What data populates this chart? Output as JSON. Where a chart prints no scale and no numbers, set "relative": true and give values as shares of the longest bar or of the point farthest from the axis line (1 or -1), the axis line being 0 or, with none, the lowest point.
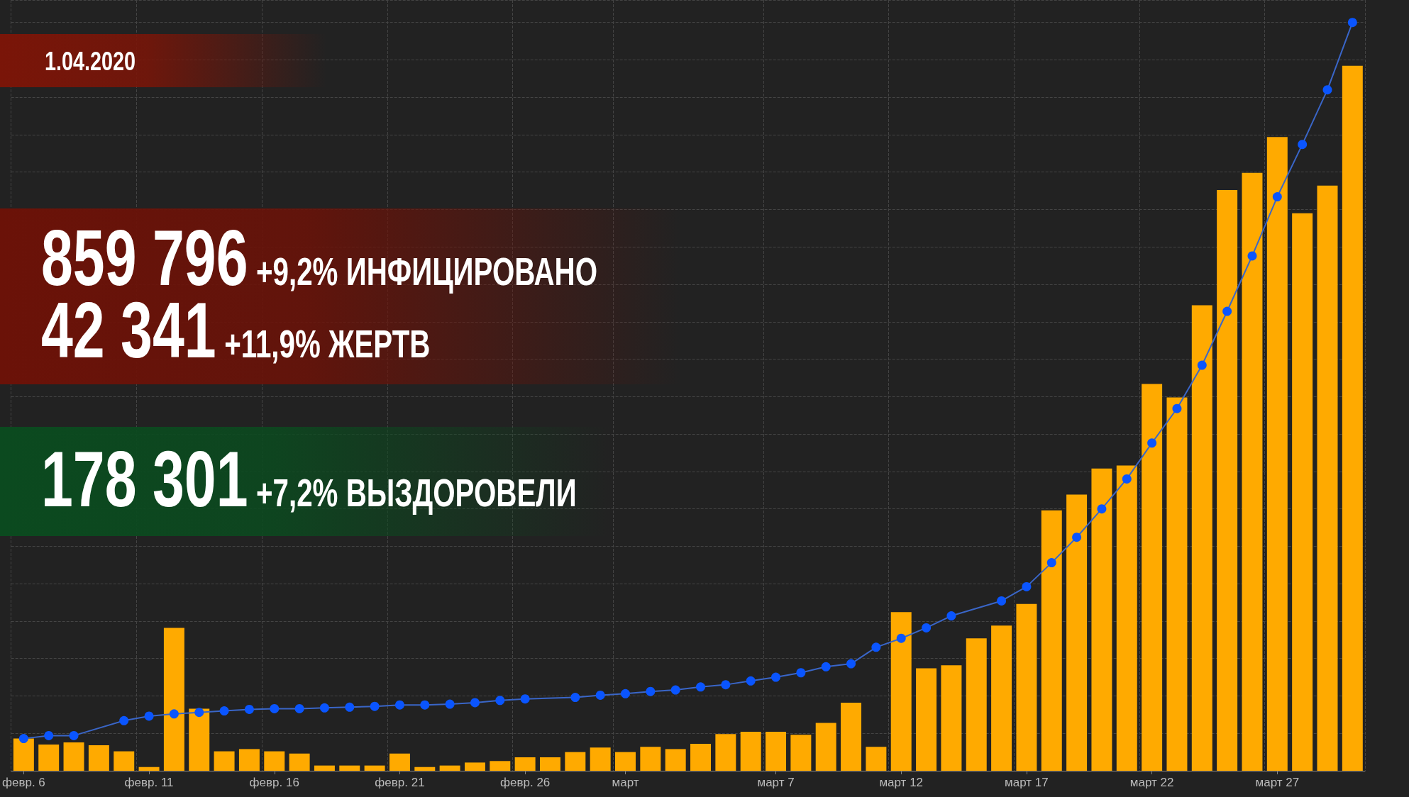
{
  "chart_data": {
    "type": "bar",
    "relative": true,
    "grid": true,
    "marker": "circle",
    "categories": [
      "февр. 6",
      null,
      null,
      null,
      null,
      "февр. 11",
      null,
      null,
      null,
      null,
      "февр. 16",
      null,
      null,
      null,
      null,
      "февр. 21",
      null,
      null,
      null,
      null,
      "февр. 26",
      null,
      null,
      null,
      "март",
      null,
      null,
      null,
      null,
      null,
      "март 7",
      null,
      null,
      null,
      null,
      "март 12",
      null,
      null,
      null,
      null,
      "март 17",
      null,
      null,
      null,
      null,
      "март 22",
      null,
      null,
      null,
      null,
      "март 27",
      null,
      null,
      null
    ],
    "series": [
      {
        "color": "#ffaa00",
        "values": [
          0.043,
          0.035,
          0.038,
          0.034,
          0.026,
          0.005,
          0.191,
          0.083,
          0.026,
          0.029,
          0.026,
          0.023,
          0.007,
          0.007,
          0.007,
          0.023,
          0.005,
          0.007,
          0.011,
          0.013,
          0.018,
          0.018,
          0.025,
          0.031,
          0.025,
          0.032,
          0.029,
          0.036,
          0.049,
          0.052,
          0.052,
          0.048,
          0.064,
          0.091,
          0.032,
          0.212,
          0.137,
          0.141,
          0.177,
          0.194,
          0.223,
          0.348,
          0.369,
          0.404,
          0.408,
          0.517,
          0.499,
          0.622,
          0.776,
          0.799,
          0.847,
          0.745,
          0.782,
          0.942
        ]
      },
      {
        "type": "line",
        "color": "#0a55ff",
        "values": [
          0.043,
          0.047,
          0.047,
          null,
          0.067,
          0.073,
          0.076,
          0.078,
          0.08,
          0.082,
          0.083,
          0.083,
          0.084,
          0.085,
          0.086,
          0.088,
          0.088,
          0.089,
          0.091,
          0.094,
          0.096,
          null,
          0.098,
          0.101,
          0.103,
          0.106,
          0.108,
          0.112,
          0.115,
          0.12,
          0.125,
          0.131,
          0.139,
          0.143,
          0.165,
          0.177,
          0.191,
          0.207,
          null,
          0.227,
          0.246,
          0.278,
          0.312,
          0.35,
          0.39,
          0.438,
          0.484,
          0.542,
          0.614,
          0.688,
          0.767,
          0.837,
          0.91,
          1
        ]
      }
    ],
    "annotations": [
      "1.04.2020",
      "859 796",
      "+9,2% ИНФИЦИРОВАНО",
      "42 341",
      "+11,9% ЖЕРТВ",
      "178 301",
      "+7,2% ВЫЗДОРОВЕЛИ"
    ]
  }
}
